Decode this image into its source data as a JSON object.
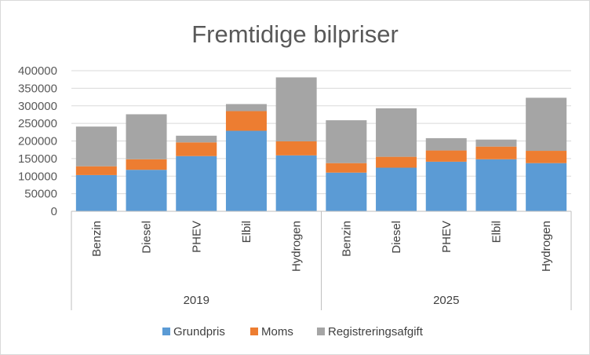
{
  "chart_data": {
    "type": "bar",
    "stacked": true,
    "title": "Fremtidige bilpriser",
    "groups": [
      {
        "label": "2019",
        "categories": [
          "Benzin",
          "Diesel",
          "PHEV",
          "Elbil",
          "Hydrogen"
        ]
      },
      {
        "label": "2025",
        "categories": [
          "Benzin",
          "Diesel",
          "PHEV",
          "Elbil",
          "Hydrogen"
        ]
      }
    ],
    "series": [
      {
        "name": "Grundpris",
        "color": "#5b9bd5",
        "values": [
          103000,
          118000,
          157000,
          229000,
          159000,
          110000,
          124000,
          141000,
          148000,
          137000
        ]
      },
      {
        "name": "Moms",
        "color": "#ed7d31",
        "values": [
          25000,
          30000,
          39000,
          56000,
          40000,
          27000,
          31000,
          32000,
          36000,
          35000
        ]
      },
      {
        "name": "Registreringsafgift",
        "color": "#a5a5a5",
        "values": [
          113000,
          128000,
          19000,
          20000,
          182000,
          122000,
          138000,
          35000,
          20000,
          151000
        ]
      }
    ],
    "ylim": [
      0,
      400000
    ],
    "yticks": [
      "0",
      "50000",
      "100000",
      "150000",
      "200000",
      "250000",
      "300000",
      "350000",
      "400000"
    ],
    "grid": true,
    "legend": "bottom"
  }
}
